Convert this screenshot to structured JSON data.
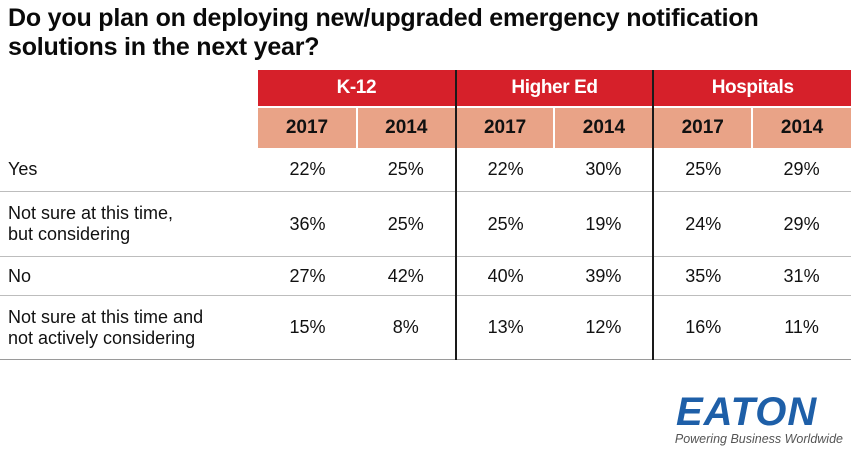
{
  "title": {
    "line1": "Do you plan on deploying new/upgraded emergency notification",
    "line2": "solutions in the next year?"
  },
  "chart_data": {
    "type": "table",
    "title": "Do you plan on deploying new/upgraded emergency notification solutions in the next year?",
    "groups": [
      {
        "name": "K-12",
        "years": [
          "2017",
          "2014"
        ]
      },
      {
        "name": "Higher Ed",
        "years": [
          "2017",
          "2014"
        ]
      },
      {
        "name": "Hospitals",
        "years": [
          "2017",
          "2014"
        ]
      }
    ],
    "rows": [
      {
        "label": "Yes",
        "values": [
          "22%",
          "25%",
          "22%",
          "30%",
          "25%",
          "29%"
        ]
      },
      {
        "label_lines": [
          "Not sure at this time,",
          "but considering"
        ],
        "values": [
          "36%",
          "25%",
          "25%",
          "19%",
          "24%",
          "29%"
        ]
      },
      {
        "label": "No",
        "values": [
          "27%",
          "42%",
          "40%",
          "39%",
          "35%",
          "31%"
        ]
      },
      {
        "label_lines": [
          "Not sure at this time and",
          "not actively considering"
        ],
        "values": [
          "15%",
          "8%",
          "13%",
          "12%",
          "16%",
          "11%"
        ]
      }
    ]
  },
  "logo": {
    "wordmark": "EATON",
    "tagline": "Powering Business Worldwide"
  }
}
